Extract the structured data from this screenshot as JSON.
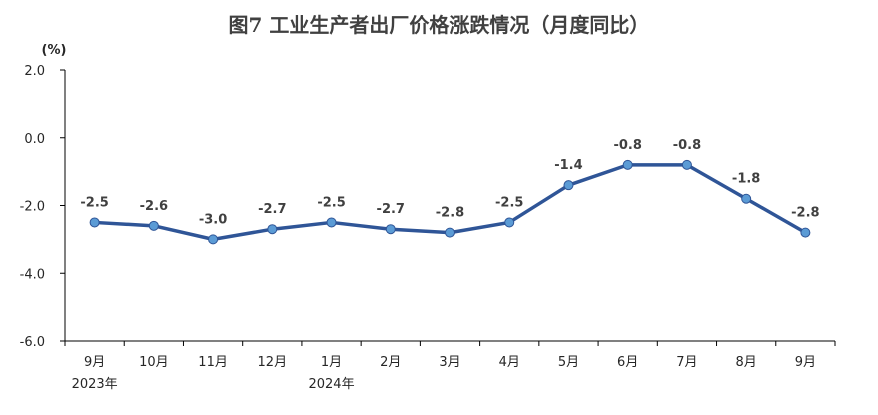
{
  "chart_data": {
    "type": "line",
    "title": "图7  工业生产者出厂价格涨跌情况（月度同比）",
    "unit_label": "(%)",
    "categories": [
      "9月",
      "10月",
      "11月",
      "12月",
      "1月",
      "2月",
      "3月",
      "4月",
      "5月",
      "6月",
      "7月",
      "8月",
      "9月"
    ],
    "year_labels": [
      "2023年",
      "",
      "",
      "",
      "2024年",
      "",
      "",
      "",
      "",
      "",
      "",
      "",
      ""
    ],
    "series": [
      {
        "values": [
          -2.5,
          -2.6,
          -3.0,
          -2.7,
          -2.5,
          -2.7,
          -2.8,
          -2.5,
          -1.4,
          -0.8,
          -0.8,
          -1.8,
          -2.8
        ],
        "data_labels": [
          "-2.5",
          "-2.6",
          "-3.0",
          "-2.7",
          "-2.5",
          "-2.7",
          "-2.8",
          "-2.5",
          "-1.4",
          "-0.8",
          "-0.8",
          "-1.8",
          "-2.8"
        ]
      }
    ],
    "ylim": [
      -6.0,
      2.0
    ],
    "yticks": [
      2.0,
      0.0,
      -2.0,
      -4.0,
      -6.0
    ],
    "ytick_labels": [
      "2.0",
      "0.0",
      "-2.0",
      "-4.0",
      "-6.0"
    ],
    "grid": false,
    "legend": "none",
    "colors": {
      "line": "#2F5597",
      "marker_fill": "#5B9BD5",
      "marker_edge": "#2F5597",
      "axis": "#000000"
    }
  }
}
